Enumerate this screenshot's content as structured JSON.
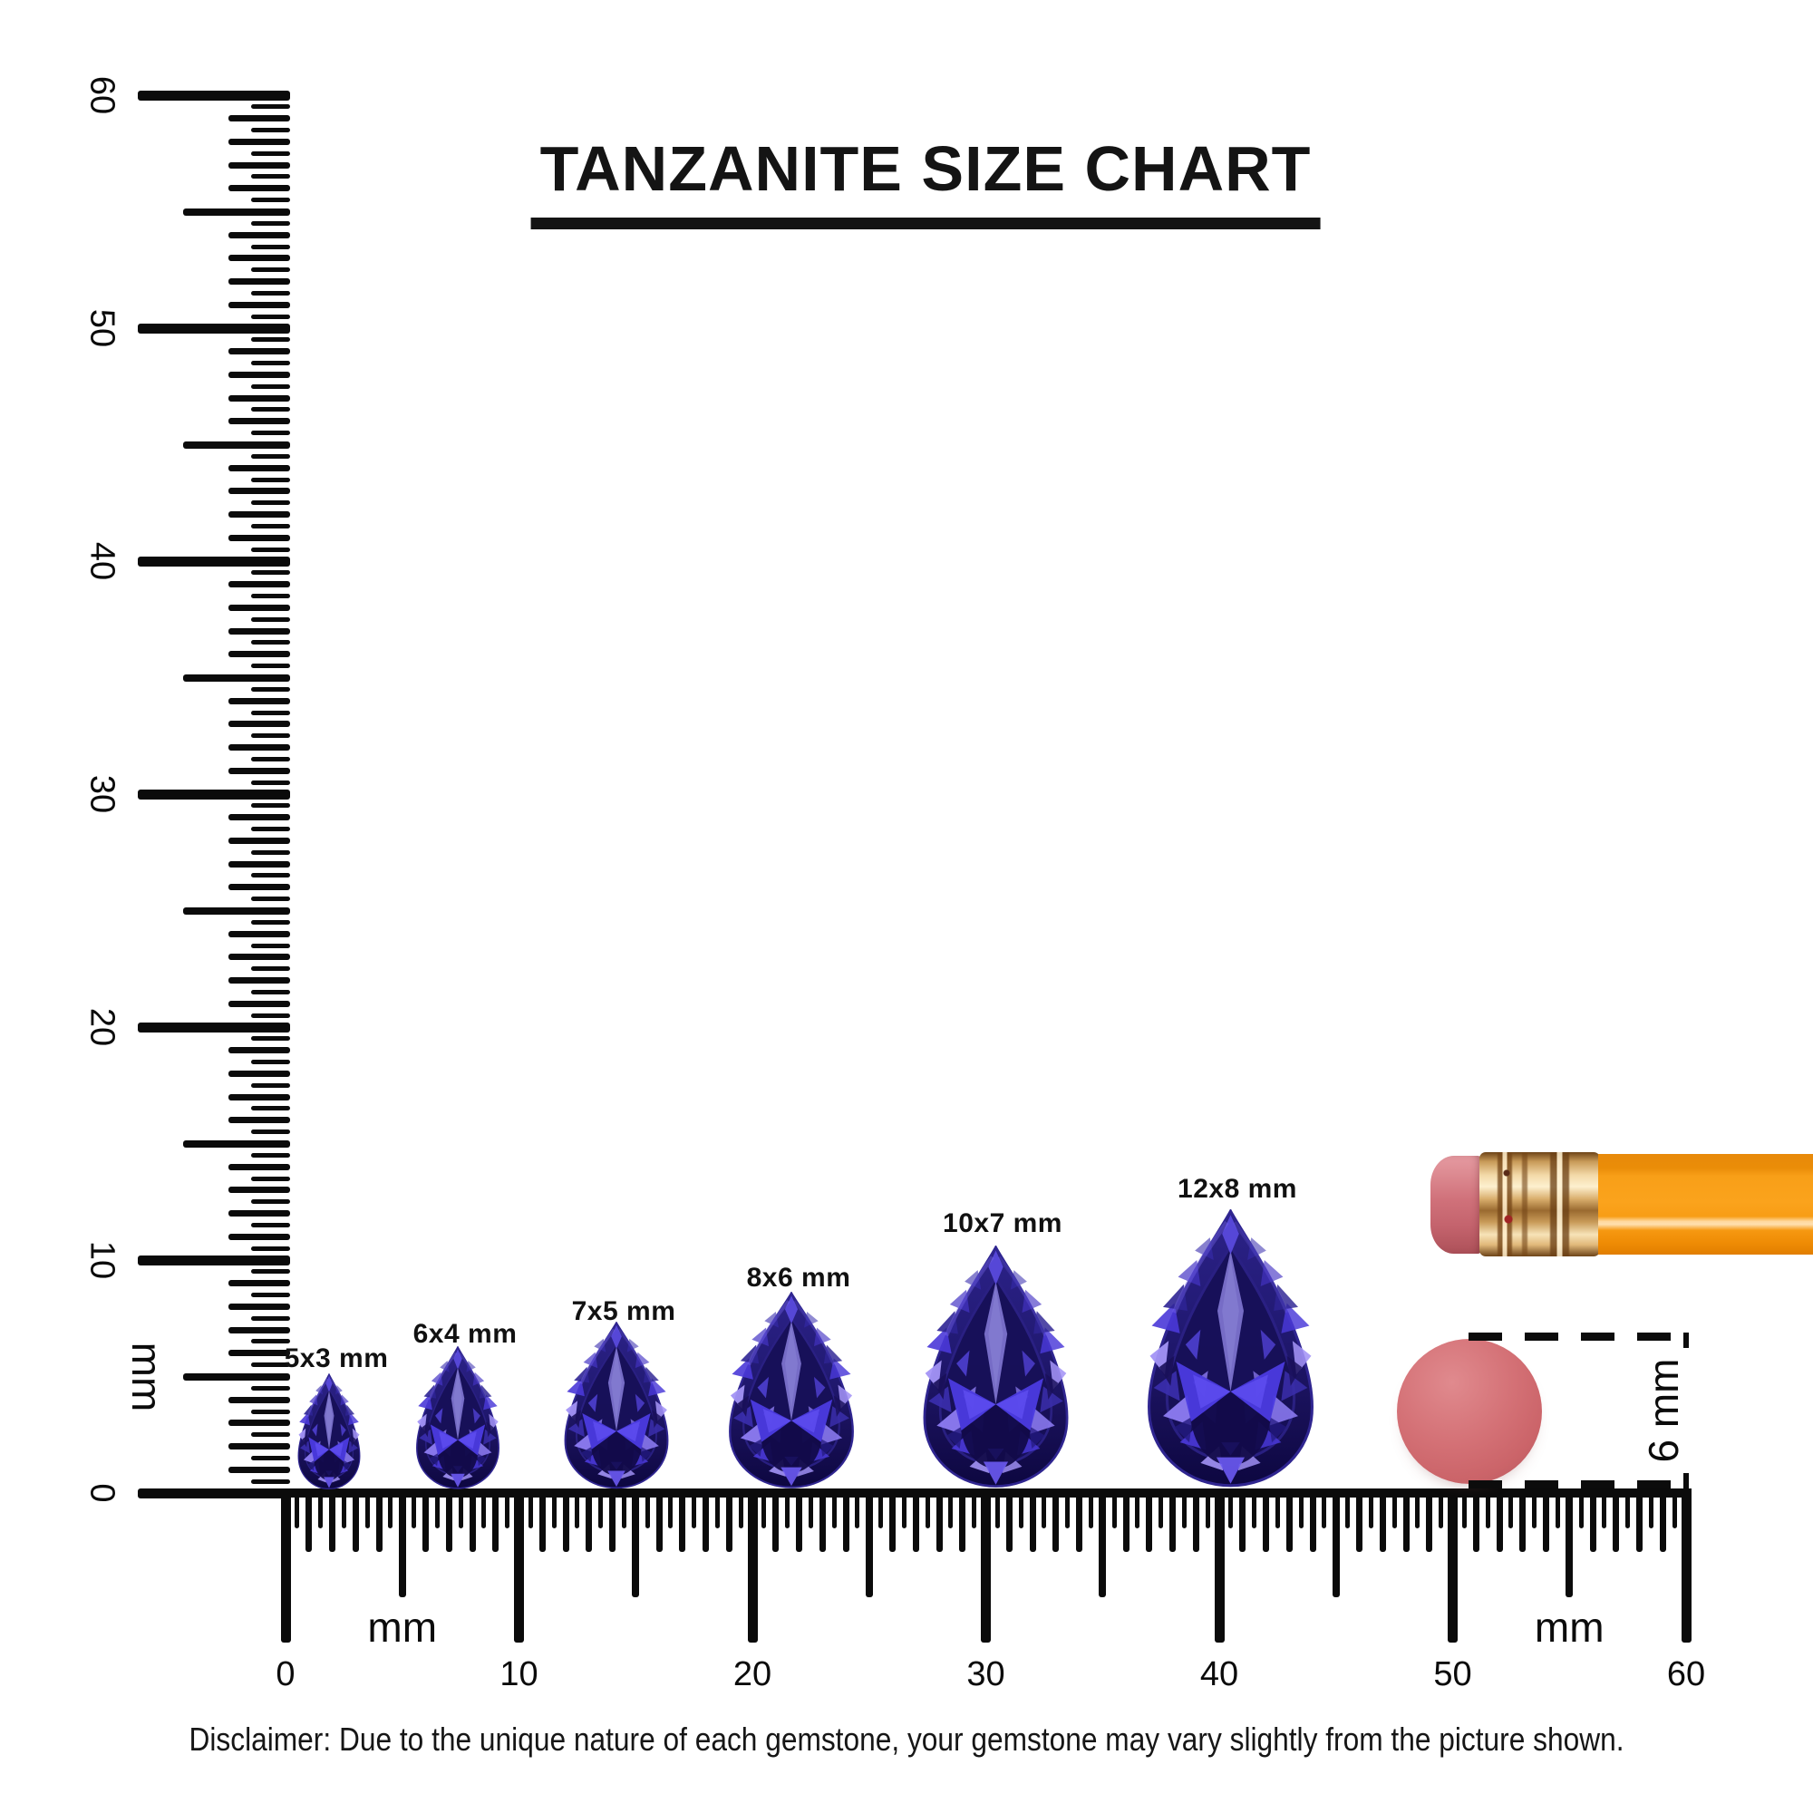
{
  "title": "TANZANITE SIZE CHART",
  "disclaimer": "Disclaimer: Due to the unique nature of each gemstone, your gemstone may vary slightly from the picture shown.",
  "vertical_ruler": {
    "unit_label": "mm",
    "major_labels": [
      "0",
      "10",
      "20",
      "30",
      "40",
      "50",
      "60"
    ],
    "range_mm": [
      0,
      60
    ]
  },
  "horizontal_ruler": {
    "unit_label_left": "mm",
    "unit_label_right": "mm",
    "major_labels": [
      "0",
      "10",
      "20",
      "30",
      "40",
      "50",
      "60"
    ],
    "range_mm": [
      0,
      60
    ]
  },
  "gems": [
    {
      "label": "5x3 mm",
      "width_mm": 3,
      "height_mm": 5
    },
    {
      "label": "6x4 mm",
      "width_mm": 4,
      "height_mm": 6
    },
    {
      "label": "7x5 mm",
      "width_mm": 5,
      "height_mm": 7
    },
    {
      "label": "8x6 mm",
      "width_mm": 6,
      "height_mm": 8
    },
    {
      "label": "10x7 mm",
      "width_mm": 7,
      "height_mm": 10
    },
    {
      "label": "12x8 mm",
      "width_mm": 8,
      "height_mm": 12
    }
  ],
  "eraser_reference": {
    "diameter_label": "6 mm"
  },
  "colors": {
    "ink": "#0b0b0b",
    "gem_dark": "#170f55",
    "gem_mid": "#2c2288",
    "gem_bright": "#4b3be0",
    "gem_pale": "#a394f6",
    "gem_kite": "#7b72cc",
    "eraser_pink": "#d47176",
    "pencil_orange": "#fba31c",
    "ferrule_gold": "#e3b878"
  }
}
